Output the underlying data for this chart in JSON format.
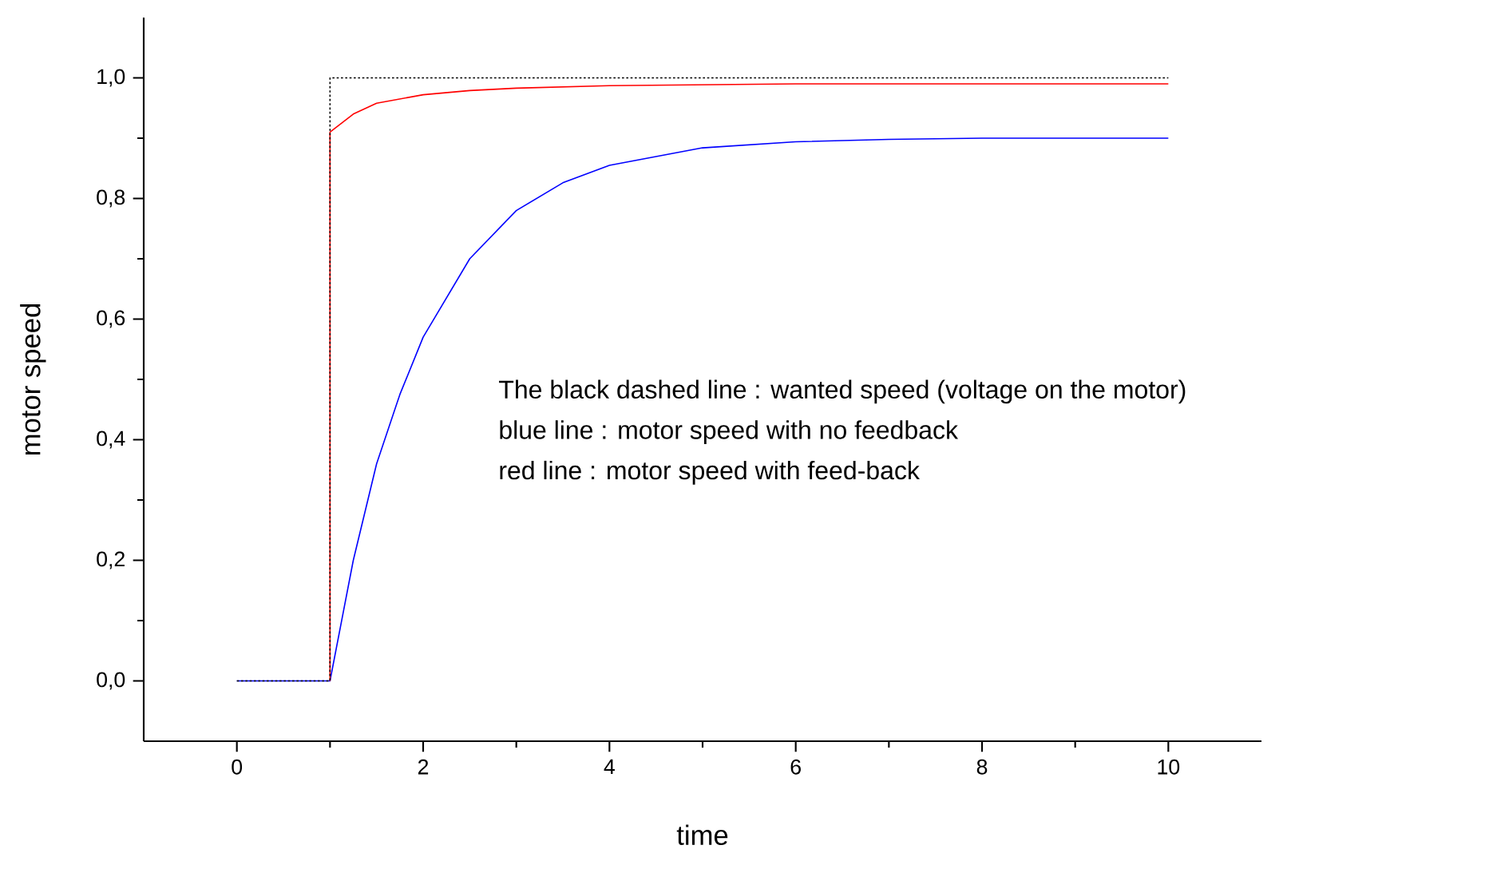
{
  "chart_data": {
    "type": "line",
    "xlabel": "time",
    "ylabel": "motor speed",
    "xlim": [
      -1,
      11
    ],
    "ylim": [
      -0.1,
      1.1
    ],
    "xticks": [
      0,
      2,
      4,
      6,
      8,
      10
    ],
    "yticks": [
      {
        "value": 0,
        "label": "0,0"
      },
      {
        "value": 0.2,
        "label": "0,2"
      },
      {
        "value": 0.4,
        "label": "0,4"
      },
      {
        "value": 0.6,
        "label": "0,6"
      },
      {
        "value": 0.8,
        "label": "0,8"
      },
      {
        "value": 1.0,
        "label": "1,0"
      }
    ],
    "annotations": [
      "The black dashed line : wanted speed (voltage on the motor)",
      "blue line : motor speed with no feedback",
      "red line  : motor speed with feed-back"
    ],
    "series": [
      {
        "color": "#0000ff",
        "line_style": "solid",
        "x": [
          0,
          1,
          1.25,
          1.5,
          1.75,
          2,
          2.5,
          3,
          3.5,
          4,
          5,
          6,
          7,
          8,
          10
        ],
        "values": [
          0,
          0,
          0.2,
          0.36,
          0.475,
          0.57,
          0.7,
          0.78,
          0.826,
          0.855,
          0.884,
          0.894,
          0.898,
          0.9,
          0.9
        ]
      },
      {
        "color": "#ff0000",
        "line_style": "solid",
        "x": [
          1,
          1,
          1.25,
          1.5,
          2,
          2.5,
          3,
          4,
          6,
          10
        ],
        "values": [
          0,
          0.91,
          0.94,
          0.958,
          0.972,
          0.979,
          0.983,
          0.987,
          0.99,
          0.99
        ]
      },
      {
        "color": "#000000",
        "line_style": "dotted",
        "x": [
          0,
          1,
          1,
          10
        ],
        "values": [
          0,
          0,
          1,
          1
        ]
      }
    ]
  }
}
